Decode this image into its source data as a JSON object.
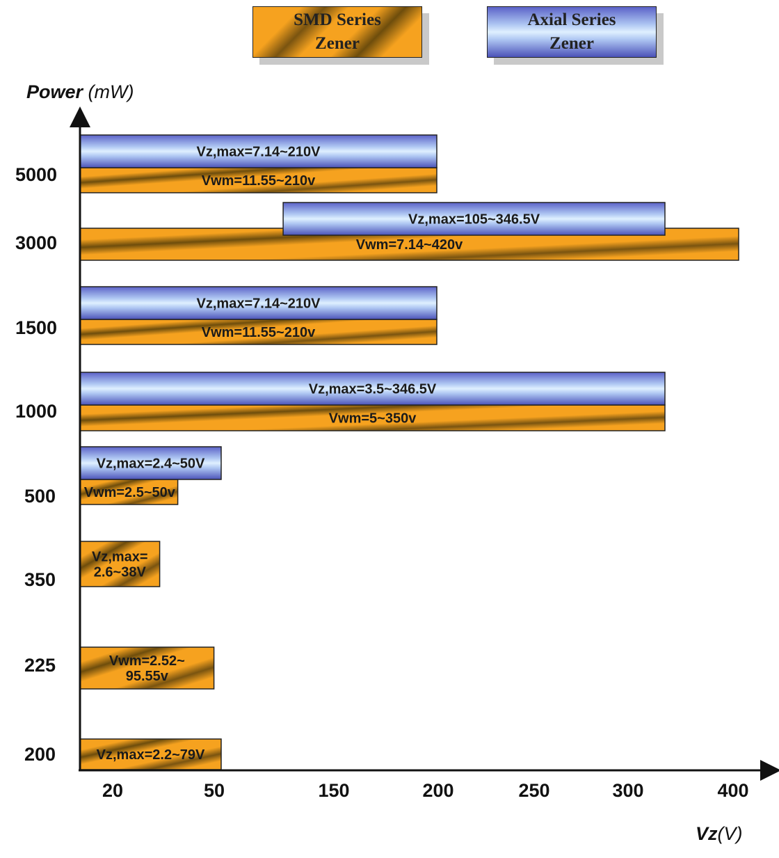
{
  "legend": {
    "smd": {
      "label": "SMD Series\nZener"
    },
    "axial": {
      "label": "Axial Series\nZener"
    }
  },
  "y_axis": {
    "title_bold": "Power",
    "title_unit": " (mW)"
  },
  "x_axis": {
    "title_bold": "Vz",
    "title_unit": "(V)"
  },
  "colors": {
    "smd": "#f6a21f",
    "smd_dark": "#6e4d0c",
    "axial_light": "#dff0ff",
    "axial_dark": "#4b52b8",
    "axis": "#111111"
  },
  "chart_data": {
    "type": "bar",
    "orientation": "horizontal",
    "ylabel": "Power (mW)",
    "xlabel": "Vz(V)",
    "categories": [
      "200",
      "225",
      "350",
      "500",
      "1000",
      "1500",
      "3000",
      "5000"
    ],
    "x_ticks": [
      "20",
      "50",
      "150",
      "200",
      "250",
      "300",
      "400"
    ],
    "series": [
      {
        "name": "SMD Series Zener"
      },
      {
        "name": "Axial Series Zener"
      }
    ],
    "bars": [
      {
        "category": "5000",
        "series": "Axial Series Zener",
        "start": 0,
        "end": 200,
        "label": "Vz,max=7.14~210V"
      },
      {
        "category": "5000",
        "series": "SMD Series Zener",
        "start": 0,
        "end": 200,
        "label": "Vwm=11.55~210v"
      },
      {
        "category": "3000",
        "series": "Axial Series Zener",
        "start": 105,
        "end": 330,
        "label": "Vz,max=105~346.5V"
      },
      {
        "category": "3000",
        "series": "SMD Series Zener",
        "start": 0,
        "end": 410,
        "label": "Vwm=7.14~420v"
      },
      {
        "category": "1500",
        "series": "Axial Series Zener",
        "start": 0,
        "end": 200,
        "label": "Vz,max=7.14~210V"
      },
      {
        "category": "1500",
        "series": "SMD Series Zener",
        "start": 0,
        "end": 200,
        "label": "Vwm=11.55~210v"
      },
      {
        "category": "1000",
        "series": "Axial Series Zener",
        "start": 0,
        "end": 330,
        "label": "Vz,max=3.5~346.5V"
      },
      {
        "category": "1000",
        "series": "SMD Series Zener",
        "start": 0,
        "end": 330,
        "label": "Vwm=5~350v"
      },
      {
        "category": "500",
        "series": "Axial Series Zener",
        "start": 0,
        "end": 50,
        "label": "Vz,max=2.4~50V"
      },
      {
        "category": "500",
        "series": "SMD Series Zener",
        "start": 0,
        "end": 38,
        "label": "Vwm=2.5~50v"
      },
      {
        "category": "350",
        "series": "SMD Series Zener",
        "start": 0,
        "end": 33,
        "label": "Vz,max=\n2.6~38V"
      },
      {
        "category": "225",
        "series": "SMD Series Zener",
        "start": 0,
        "end": 48,
        "label": "Vwm=2.52~\n95.55v"
      },
      {
        "category": "200",
        "series": "SMD Series Zener",
        "start": 0,
        "end": 50,
        "label": "Vz,max=2.2~79V"
      }
    ]
  }
}
